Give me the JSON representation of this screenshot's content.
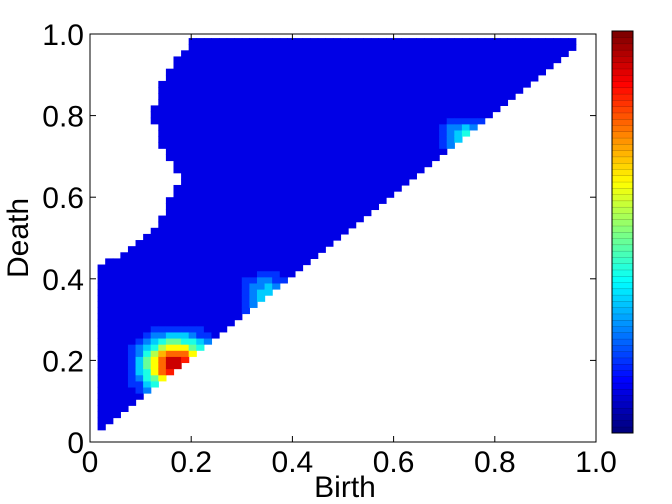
{
  "chart_data": {
    "type": "heatmap",
    "title": "",
    "xlabel": "Birth",
    "ylabel": "Death",
    "xlim": [
      0,
      1.0
    ],
    "ylim": [
      0,
      1.0
    ],
    "x_tick_values": [
      0,
      0.2,
      0.4,
      0.6,
      0.8,
      1.0
    ],
    "x_tick_labels": [
      "0",
      "0.2",
      "0.4",
      "0.6",
      "0.8",
      "1.0"
    ],
    "y_tick_values": [
      0,
      0.2,
      0.4,
      0.6,
      0.8,
      1.0
    ],
    "y_tick_labels": [
      "0",
      "0.2",
      "0.4",
      "0.6",
      "0.8",
      "1.0"
    ],
    "grid": false,
    "colormap": "jet",
    "colorbar": {
      "position": "right",
      "steps": 64,
      "show_labels": false
    },
    "region_outline": [
      [
        0.02,
        0.03
      ],
      [
        0.02,
        0.44
      ],
      [
        0.05,
        0.45
      ],
      [
        0.1,
        0.5
      ],
      [
        0.14,
        0.54
      ],
      [
        0.15,
        0.59
      ],
      [
        0.17,
        0.62
      ],
      [
        0.18,
        0.65
      ],
      [
        0.15,
        0.7
      ],
      [
        0.13,
        0.74
      ],
      [
        0.13,
        0.77
      ],
      [
        0.12,
        0.8
      ],
      [
        0.13,
        0.84
      ],
      [
        0.14,
        0.87
      ],
      [
        0.15,
        0.91
      ],
      [
        0.17,
        0.94
      ],
      [
        0.19,
        0.97
      ],
      [
        0.2,
        0.99
      ],
      [
        0.6,
        0.99
      ],
      [
        0.96,
        0.99
      ],
      [
        0.97,
        0.97
      ]
    ],
    "density_peaks": [
      {
        "x": 0.17,
        "y": 0.19,
        "intensity": 1.0,
        "spread": 0.045
      },
      {
        "x": 0.35,
        "y": 0.36,
        "intensity": 0.32,
        "spread": 0.035
      },
      {
        "x": 0.74,
        "y": 0.75,
        "intensity": 0.36,
        "spread": 0.03
      }
    ]
  }
}
